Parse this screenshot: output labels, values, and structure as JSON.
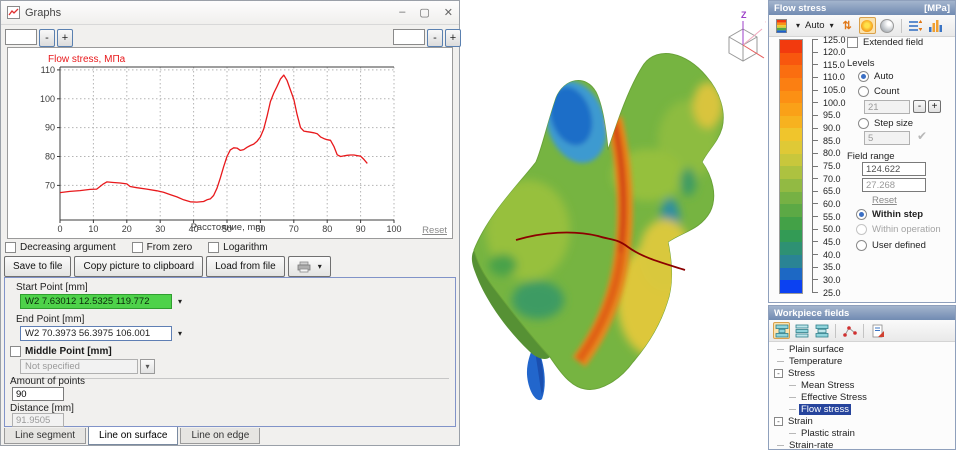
{
  "chart_data": {
    "type": "line",
    "title": "Flow stress, МПа",
    "xlabel": "Расстояние, mm",
    "xlim": [
      0,
      100
    ],
    "ylim": [
      58,
      111
    ],
    "xticks": [
      0,
      10,
      20,
      30,
      40,
      50,
      60,
      70,
      80,
      90,
      100
    ],
    "yticks": [
      70,
      80,
      90,
      100,
      110
    ],
    "grid": true,
    "legend_position": "none",
    "line_color": "#e8191c",
    "points": [
      [
        0,
        67.5
      ],
      [
        3,
        67.9
      ],
      [
        6,
        68.2
      ],
      [
        9,
        68.6
      ],
      [
        11,
        68.7
      ],
      [
        13,
        70.5
      ],
      [
        14,
        71.2
      ],
      [
        16,
        71.0
      ],
      [
        18,
        70.8
      ],
      [
        20,
        70.5
      ],
      [
        21,
        69.6
      ],
      [
        23,
        69.2
      ],
      [
        26,
        68.7
      ],
      [
        29,
        68.1
      ],
      [
        31,
        67.6
      ],
      [
        33,
        66.8
      ],
      [
        35,
        66.0
      ],
      [
        37,
        65.0
      ],
      [
        39,
        64.3
      ],
      [
        41,
        64.2
      ],
      [
        43,
        64.4
      ],
      [
        44,
        65.0
      ],
      [
        45,
        65.3
      ],
      [
        46,
        66.5
      ],
      [
        47,
        69.0
      ],
      [
        48,
        72.5
      ],
      [
        49,
        76.5
      ],
      [
        50,
        80.0
      ],
      [
        51,
        82.3
      ],
      [
        52,
        83.0
      ],
      [
        53,
        82.9
      ],
      [
        54,
        82.1
      ],
      [
        55,
        82.4
      ],
      [
        56,
        83.2
      ],
      [
        57,
        83.8
      ],
      [
        58,
        84.3
      ],
      [
        59,
        85.3
      ],
      [
        60,
        86.8
      ],
      [
        61,
        89.5
      ],
      [
        62,
        94.0
      ],
      [
        63,
        99.0
      ],
      [
        64,
        102.0
      ],
      [
        65,
        104.3
      ],
      [
        66,
        106.8
      ],
      [
        67,
        108.2
      ],
      [
        68,
        106.3
      ],
      [
        69,
        103.0
      ],
      [
        70,
        99.8
      ],
      [
        71,
        94.5
      ],
      [
        72,
        90.0
      ],
      [
        73,
        88.8
      ],
      [
        74,
        88.6
      ],
      [
        75,
        88.4
      ],
      [
        76,
        88.2
      ],
      [
        77,
        87.9
      ],
      [
        78,
        86.8
      ],
      [
        79,
        86.2
      ],
      [
        80,
        85.8
      ],
      [
        81,
        85.6
      ],
      [
        82,
        83.5
      ],
      [
        83,
        80.6
      ],
      [
        84,
        80.0
      ],
      [
        85,
        80.2
      ],
      [
        86,
        80.4
      ],
      [
        87,
        80.5
      ],
      [
        88,
        80.5
      ],
      [
        89,
        80.3
      ],
      [
        90,
        80.1
      ],
      [
        91,
        79.0
      ],
      [
        92,
        77.6
      ]
    ]
  },
  "glyphs": {
    "minus": "-",
    "plus": "+",
    "down_arrow": "▾",
    "check": "✔"
  },
  "graphs_window": {
    "title": "Graphs",
    "window_buttons": {
      "minimize": "–",
      "maximize": "▢",
      "close": "✕"
    },
    "reset_link": "Reset",
    "checkboxes": [
      {
        "label": "Decreasing argument",
        "checked": false
      },
      {
        "label": "From zero",
        "checked": false
      },
      {
        "label": "Logarithm",
        "checked": false
      }
    ],
    "buttons": [
      "Save to file",
      "Copy picture to clipboard",
      "Load from file"
    ],
    "form": {
      "start_point_label": "Start Point [mm]",
      "start_point_value": "W2 7.63012 12.5325 119.772",
      "end_point_label": "End Point [mm]",
      "end_point_value": "W2 70.3973 56.3975 106.001",
      "middle_point_label": "Middle Point [mm]",
      "middle_point_value": "Not specified",
      "amount_label": "Amount of points",
      "amount_value": "90",
      "distance_label": "Distance [mm]",
      "distance_value": "91.9505"
    },
    "tabs": [
      {
        "label": "Line segment",
        "active": false
      },
      {
        "label": "Line on surface",
        "active": true
      },
      {
        "label": "Line on edge",
        "active": false
      }
    ]
  },
  "viewport": {
    "axis_x": "X",
    "axis_y": "Y",
    "axis_z": "Z"
  },
  "flow_stress_panel": {
    "title": "Flow stress",
    "unit": "[MPa]",
    "auto_label": "Auto",
    "colorbar": {
      "labels": [
        "125.0",
        "120.0",
        "115.0",
        "110.0",
        "105.0",
        "100.0",
        "95.0",
        "90.0",
        "85.0",
        "80.0",
        "75.0",
        "70.0",
        "65.0",
        "60.0",
        "55.0",
        "50.0",
        "45.0",
        "40.0",
        "35.0",
        "30.0",
        "25.0"
      ],
      "colors": [
        "#F23A0E",
        "#F8570E",
        "#FA6E10",
        "#FB7F12",
        "#FC9014",
        "#FAA118",
        "#F7B21F",
        "#F0C52C",
        "#DFC936",
        "#C8C73C",
        "#ADC240",
        "#92BA43",
        "#76B144",
        "#5CA945",
        "#43A147",
        "#339B55",
        "#2E9173",
        "#2A8494",
        "#1D68C4",
        "#0B41F2"
      ]
    },
    "extended_field_label": "Extended field",
    "levels": {
      "label": "Levels",
      "auto_label": "Auto",
      "count_label": "Count",
      "count_value": "21",
      "step_label": "Step size",
      "step_value": "5"
    },
    "field_range": {
      "label": "Field range",
      "max_value": "124.622",
      "min_value": "27.268",
      "reset_link": "Reset",
      "within_step": "Within step",
      "within_operation": "Within operation",
      "user_defined": "User defined"
    }
  },
  "workpiece_panel": {
    "title": "Workpiece fields",
    "tree": [
      {
        "label": "Plain surface",
        "level": 0,
        "expander": "",
        "selected": false
      },
      {
        "label": "Temperature",
        "level": 0,
        "expander": "",
        "selected": false
      },
      {
        "label": "Stress",
        "level": 0,
        "expander": "-",
        "selected": false
      },
      {
        "label": "Mean Stress",
        "level": 1,
        "expander": "",
        "selected": false
      },
      {
        "label": "Effective Stress",
        "level": 1,
        "expander": "",
        "selected": false
      },
      {
        "label": "Flow stress",
        "level": 1,
        "expander": "",
        "selected": true
      },
      {
        "label": "Strain",
        "level": 0,
        "expander": "-",
        "selected": false
      },
      {
        "label": "Plastic strain",
        "level": 1,
        "expander": "",
        "selected": false
      },
      {
        "label": "Strain-rate",
        "level": 0,
        "expander": "",
        "selected": false
      }
    ]
  }
}
